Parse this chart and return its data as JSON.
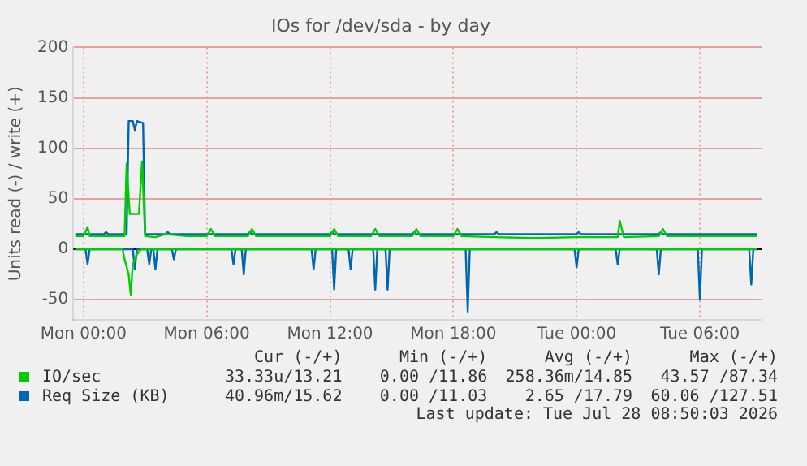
{
  "chart_data": {
    "type": "line",
    "title": "IOs for /dev/sda - by day",
    "ylabel": "Units read (-) / write (+)",
    "xlim": [
      "2026-07-26T23:30",
      "2026-07-28T09:00"
    ],
    "xticks": [
      {
        "value": "2026-07-27T00:00",
        "label": "Mon 00:00"
      },
      {
        "value": "2026-07-27T06:00",
        "label": "Mon 06:00"
      },
      {
        "value": "2026-07-27T12:00",
        "label": "Mon 12:00"
      },
      {
        "value": "2026-07-27T18:00",
        "label": "Mon 18:00"
      },
      {
        "value": "2026-07-28T00:00",
        "label": "Tue 00:00"
      },
      {
        "value": "2026-07-28T06:00",
        "label": "Tue 06:00"
      }
    ],
    "ylim": [
      -70,
      200
    ],
    "yticks": [
      -50,
      0,
      50,
      100,
      150,
      200
    ],
    "grid": true,
    "legend": "bottom",
    "marker": "none",
    "line_style": "solid",
    "series": [
      {
        "name": "IO/sec",
        "color": "#00cc00",
        "x": [
          "2026-07-26T23:36",
          "2026-07-27T00:00",
          "2026-07-27T00:12",
          "2026-07-27T00:18",
          "2026-07-27T01:00",
          "2026-07-27T02:00",
          "2026-07-27T02:06",
          "2026-07-27T02:15",
          "2026-07-27T02:42",
          "2026-07-27T02:51",
          "2026-07-27T03:00",
          "2026-07-27T03:30",
          "2026-07-27T04:00",
          "2026-07-27T05:00",
          "2026-07-27T06:00",
          "2026-07-27T06:12",
          "2026-07-27T06:24",
          "2026-07-27T08:00",
          "2026-07-27T08:12",
          "2026-07-27T08:24",
          "2026-07-27T10:00",
          "2026-07-27T12:00",
          "2026-07-27T12:12",
          "2026-07-27T12:24",
          "2026-07-27T14:00",
          "2026-07-27T14:12",
          "2026-07-27T14:24",
          "2026-07-27T16:00",
          "2026-07-27T16:12",
          "2026-07-27T16:24",
          "2026-07-27T18:00",
          "2026-07-27T18:12",
          "2026-07-27T18:24",
          "2026-07-27T20:00",
          "2026-07-27T22:00",
          "2026-07-28T00:00",
          "2026-07-28T02:00",
          "2026-07-28T02:06",
          "2026-07-28T02:18",
          "2026-07-28T04:00",
          "2026-07-28T04:12",
          "2026-07-28T04:24",
          "2026-07-28T06:00",
          "2026-07-28T08:00",
          "2026-07-28T08:48"
        ],
        "values": [
          13,
          13,
          22,
          13,
          13,
          13,
          85,
          35,
          35,
          87,
          13,
          12,
          15,
          13,
          13,
          20,
          13,
          13,
          20,
          13,
          13,
          13,
          20,
          13,
          13,
          20,
          13,
          13,
          20,
          13,
          13,
          20,
          13,
          12,
          11,
          12,
          12,
          28,
          12,
          13,
          20,
          13,
          13,
          13,
          13
        ]
      },
      {
        "color": "#00cc00",
        "x": [
          "2026-07-26T23:36",
          "2026-07-27T01:54",
          "2026-07-27T02:00",
          "2026-07-27T02:12",
          "2026-07-27T02:18",
          "2026-07-27T02:24",
          "2026-07-27T02:36",
          "2026-07-27T02:48",
          "2026-07-28T08:48"
        ],
        "values": [
          0,
          0,
          -10,
          -25,
          -45,
          -15,
          -5,
          0,
          0
        ]
      },
      {
        "name": "Req Size (KB)",
        "color": "#0066b3",
        "x": [
          "2026-07-26T23:36",
          "2026-07-27T01:00",
          "2026-07-27T01:06",
          "2026-07-27T01:12",
          "2026-07-27T02:06",
          "2026-07-27T02:12",
          "2026-07-27T02:24",
          "2026-07-27T02:30",
          "2026-07-27T02:36",
          "2026-07-27T02:54",
          "2026-07-27T03:00",
          "2026-07-27T04:00",
          "2026-07-27T04:06",
          "2026-07-27T04:12",
          "2026-07-27T08:00",
          "2026-07-27T08:06",
          "2026-07-27T08:12",
          "2026-07-27T12:00",
          "2026-07-27T12:06",
          "2026-07-27T12:12",
          "2026-07-27T16:00",
          "2026-07-27T16:06",
          "2026-07-27T16:12",
          "2026-07-27T20:00",
          "2026-07-27T20:06",
          "2026-07-27T20:12",
          "2026-07-28T00:00",
          "2026-07-28T00:06",
          "2026-07-28T00:12",
          "2026-07-28T04:00",
          "2026-07-28T04:06",
          "2026-07-28T04:12",
          "2026-07-28T08:48"
        ],
        "values": [
          15,
          15,
          17,
          15,
          15,
          127,
          127,
          118,
          127,
          125,
          15,
          15,
          17,
          15,
          15,
          17,
          15,
          15,
          17,
          15,
          15,
          17,
          15,
          15,
          17,
          15,
          15,
          17,
          15,
          15,
          17,
          15,
          15
        ]
      },
      {
        "color": "#0066b3",
        "x": [
          "2026-07-26T23:36",
          "2026-07-27T00:06",
          "2026-07-27T00:12",
          "2026-07-27T00:18",
          "2026-07-27T02:24",
          "2026-07-27T02:30",
          "2026-07-27T02:36",
          "2026-07-27T03:06",
          "2026-07-27T03:12",
          "2026-07-27T03:18",
          "2026-07-27T03:24",
          "2026-07-27T03:30",
          "2026-07-27T03:36",
          "2026-07-27T04:18",
          "2026-07-27T04:24",
          "2026-07-27T04:30",
          "2026-07-27T07:12",
          "2026-07-27T07:18",
          "2026-07-27T07:24",
          "2026-07-27T07:42",
          "2026-07-27T07:48",
          "2026-07-27T07:54",
          "2026-07-27T11:06",
          "2026-07-27T11:12",
          "2026-07-27T11:18",
          "2026-07-27T12:06",
          "2026-07-27T12:12",
          "2026-07-27T12:18",
          "2026-07-27T12:54",
          "2026-07-27T13:00",
          "2026-07-27T13:06",
          "2026-07-27T14:06",
          "2026-07-27T14:12",
          "2026-07-27T14:18",
          "2026-07-27T14:42",
          "2026-07-27T14:48",
          "2026-07-27T14:54",
          "2026-07-27T18:36",
          "2026-07-27T18:42",
          "2026-07-27T18:48",
          "2026-07-27T23:54",
          "2026-07-28T00:00",
          "2026-07-28T00:06",
          "2026-07-28T01:54",
          "2026-07-28T02:00",
          "2026-07-28T02:06",
          "2026-07-28T03:54",
          "2026-07-28T04:00",
          "2026-07-28T04:06",
          "2026-07-28T05:54",
          "2026-07-28T06:00",
          "2026-07-28T06:06",
          "2026-07-28T08:24",
          "2026-07-28T08:30",
          "2026-07-28T08:36",
          "2026-07-28T08:48"
        ],
        "values": [
          0,
          0,
          -15,
          0,
          0,
          -20,
          0,
          0,
          -15,
          0,
          0,
          -20,
          0,
          0,
          -10,
          0,
          0,
          -15,
          0,
          0,
          -25,
          0,
          0,
          -20,
          0,
          0,
          -40,
          0,
          0,
          -20,
          0,
          0,
          -40,
          0,
          0,
          -40,
          0,
          0,
          -62,
          0,
          0,
          -18,
          0,
          0,
          -15,
          0,
          0,
          -25,
          0,
          0,
          -50,
          0,
          0,
          -35,
          0,
          0
        ]
      }
    ],
    "annotations": [
      "Cur (-/+)",
      "Min (-/+)",
      "Avg (-/+)",
      "Max (-/+)",
      "33.33u/13.21",
      "0.00 /11.86",
      "258.36m/14.85",
      "43.57 /87.34",
      "40.96m/15.62",
      "0.00 /11.03",
      "2.65 /17.79",
      "60.06 /127.51",
      "Last update: Tue Jul 28 08:50:03 2026"
    ]
  }
}
